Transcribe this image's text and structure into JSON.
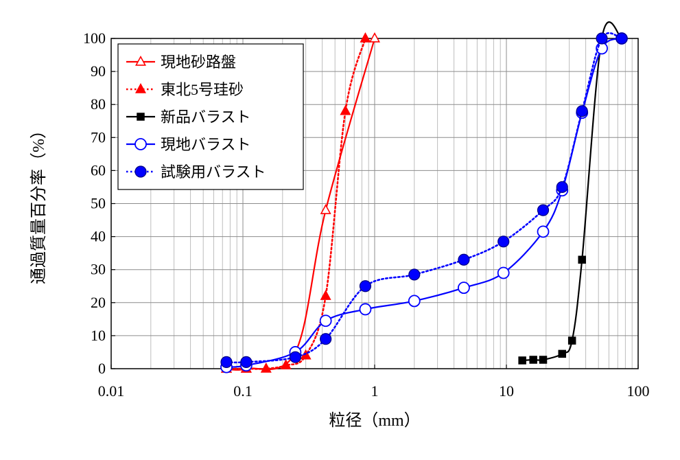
{
  "chart_data": {
    "type": "scatter",
    "xscale": "log",
    "xlim": [
      0.01,
      100
    ],
    "ylim": [
      0,
      100
    ],
    "xlabel": "粒径（mm）",
    "ylabel": "通過質量百分率（%）",
    "xticks": [
      "0.01",
      "0.1",
      "1",
      "10",
      "100"
    ],
    "yticks": [
      "0",
      "10",
      "20",
      "30",
      "40",
      "50",
      "60",
      "70",
      "80",
      "90",
      "100"
    ],
    "grid": true,
    "legend_position": "top-left",
    "series": [
      {
        "name": "現地砂路盤",
        "color": "#ff0000",
        "line": "solid",
        "marker": "triangle-open",
        "points": [
          [
            0.075,
            0
          ],
          [
            0.106,
            0
          ],
          [
            0.25,
            5
          ],
          [
            0.425,
            48
          ],
          [
            1.0,
            100
          ]
        ]
      },
      {
        "name": "東北5号珪砂",
        "color": "#ff0000",
        "line": "dotted",
        "marker": "triangle-filled",
        "points": [
          [
            0.075,
            0
          ],
          [
            0.106,
            0
          ],
          [
            0.15,
            0
          ],
          [
            0.212,
            1
          ],
          [
            0.3,
            4
          ],
          [
            0.425,
            22
          ],
          [
            0.6,
            78
          ],
          [
            0.85,
            100
          ]
        ]
      },
      {
        "name": "新品バラスト",
        "color": "#000000",
        "line": "solid",
        "marker": "square-filled",
        "points": [
          [
            13.2,
            2.5
          ],
          [
            16,
            2.7
          ],
          [
            19,
            2.7
          ],
          [
            26.5,
            4.5
          ],
          [
            31.5,
            8.5
          ],
          [
            37.5,
            33
          ],
          [
            53,
            100
          ],
          [
            75,
            100
          ]
        ]
      },
      {
        "name": "現地バラスト",
        "color": "#0000ff",
        "line": "solid",
        "marker": "circle-open",
        "points": [
          [
            0.075,
            0.5
          ],
          [
            0.106,
            1
          ],
          [
            0.25,
            5
          ],
          [
            0.425,
            14.5
          ],
          [
            0.85,
            18
          ],
          [
            2,
            20.5
          ],
          [
            4.75,
            24.5
          ],
          [
            9.5,
            29
          ],
          [
            19,
            41.5
          ],
          [
            26.5,
            54
          ],
          [
            37.5,
            77.5
          ],
          [
            53,
            97
          ],
          [
            75,
            100
          ]
        ]
      },
      {
        "name": "試験用バラスト",
        "color": "#0000ff",
        "line": "dotted",
        "marker": "circle-filled",
        "points": [
          [
            0.075,
            2
          ],
          [
            0.106,
            2
          ],
          [
            0.25,
            3.5
          ],
          [
            0.425,
            9
          ],
          [
            0.85,
            25
          ],
          [
            2,
            28.5
          ],
          [
            4.75,
            33
          ],
          [
            9.5,
            38.5
          ],
          [
            19,
            48
          ],
          [
            26.5,
            55
          ],
          [
            37.5,
            78
          ],
          [
            53,
            100
          ],
          [
            75,
            100
          ]
        ]
      }
    ]
  }
}
